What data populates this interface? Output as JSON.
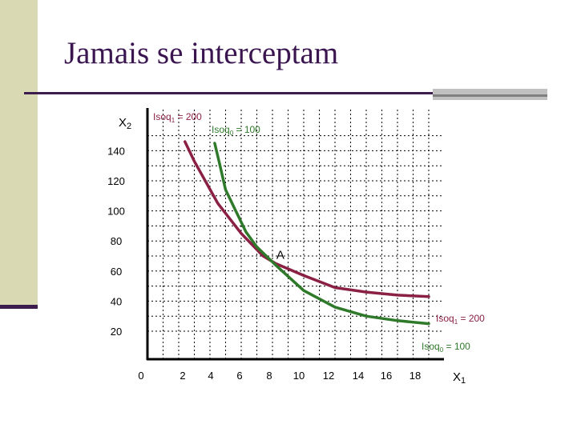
{
  "slide": {
    "title": "Jamais se interceptam"
  },
  "chart_data": {
    "type": "line",
    "title": "",
    "xlabel": "X",
    "xlabel_sub": "1",
    "ylabel": "X",
    "ylabel_sub": "2",
    "xlim": [
      0,
      20
    ],
    "ylim": [
      10,
      150
    ],
    "grid": true,
    "x_ticks": [
      0,
      2,
      4,
      6,
      8,
      10,
      12,
      14,
      16,
      18
    ],
    "y_ticks": [
      20,
      40,
      60,
      80,
      100,
      120,
      140
    ],
    "series": [
      {
        "name": "Isoq1 = 200",
        "color": "#8b2045",
        "x": [
          2.4,
          3.0,
          4.5,
          6.0,
          7.4,
          8.2,
          10.0,
          12.0,
          14.0,
          16.0,
          18.0
        ],
        "y": [
          146,
          133,
          105,
          85,
          70,
          65,
          57,
          49,
          46,
          44,
          43
        ]
      },
      {
        "name": "Isoq0 = 100",
        "color": "#2f7a2a",
        "x": [
          4.3,
          4.6,
          5.0,
          6.3,
          7.0,
          7.5,
          8.2,
          10.0,
          12.0,
          14.0,
          16.0,
          18.0
        ],
        "y": [
          145,
          132,
          114,
          86,
          76,
          71,
          64,
          47,
          36,
          30,
          27,
          25
        ]
      }
    ],
    "annotations": [
      {
        "text": "A",
        "x": 8.2,
        "y": 65
      }
    ],
    "series_labels": [
      {
        "text": "Isoq",
        "sub": "1",
        "suffix": " = 200",
        "at": "top"
      },
      {
        "text": "Isoq",
        "sub": "0",
        "suffix": " = 100",
        "at": "top"
      },
      {
        "text": "Isoq",
        "sub": "1",
        "suffix": " = 200",
        "at": "end"
      },
      {
        "text": "Isoq",
        "sub": "0",
        "suffix": " = 100",
        "at": "end"
      }
    ]
  }
}
